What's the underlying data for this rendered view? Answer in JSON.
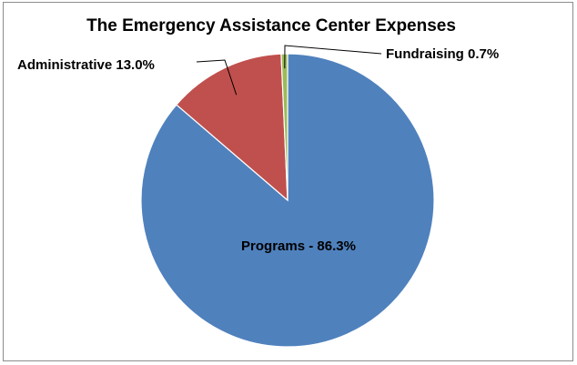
{
  "chart_data": {
    "type": "pie",
    "title": "The Emergency Assistance Center Expenses",
    "slices": [
      {
        "label": "Programs",
        "value": 86.3,
        "color": "#4f81bd",
        "label_text": "Programs - 86.3%"
      },
      {
        "label": "Administrative",
        "value": 13.0,
        "color": "#c0504d",
        "label_text": "Administrative 13.0%"
      },
      {
        "label": "Fundraising",
        "value": 0.7,
        "color": "#9bbb59",
        "label_text": "Fundraising 0.7%"
      }
    ],
    "legend": "none"
  }
}
